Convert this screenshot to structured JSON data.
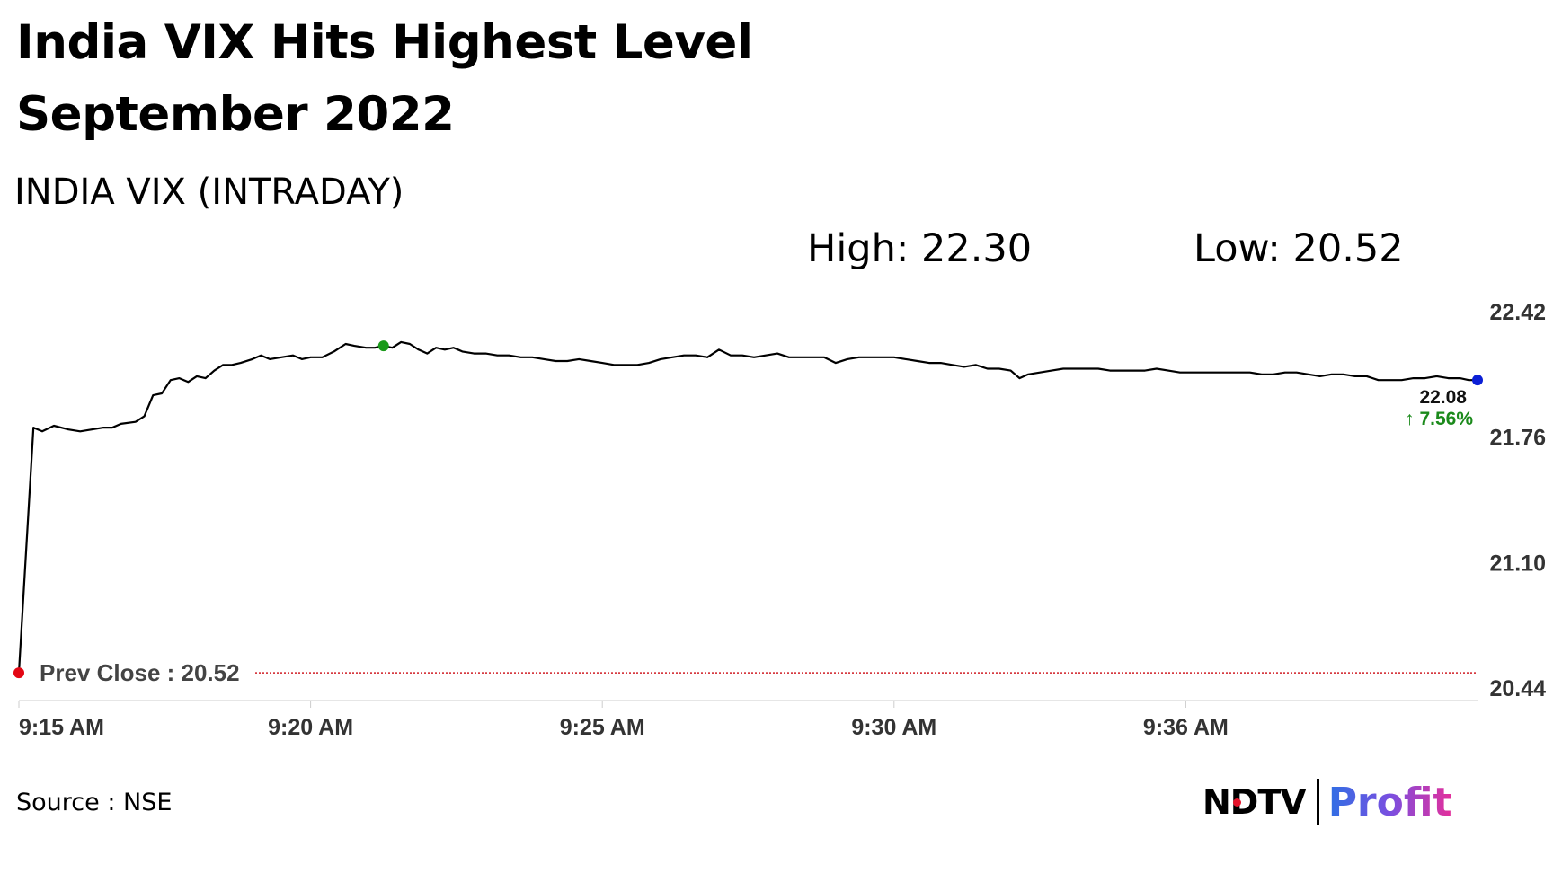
{
  "headline": "India VIX Hits Highest Level September 2022",
  "subtitle": "INDIA VIX (INTRADAY)",
  "stats": {
    "high": "High: 22.30",
    "low": "Low: 20.52"
  },
  "source": "Source : NSE",
  "logo": {
    "ndtv": "NDTV",
    "profit": "Profit",
    "ndtv_dot_color": "#e5142b"
  },
  "chart_data": {
    "type": "line",
    "y_ticks": [
      "22.42",
      "21.76",
      "21.10",
      "20.44"
    ],
    "ylim": [
      20.44,
      22.42
    ],
    "x_ticks": [
      {
        "x": 0,
        "label": "9:15 AM"
      },
      {
        "x": 5,
        "label": "9:20 AM"
      },
      {
        "x": 10,
        "label": "9:25 AM"
      },
      {
        "x": 15,
        "label": "9:30 AM"
      },
      {
        "x": 20,
        "label": "9:36 AM"
      }
    ],
    "xlim": [
      0,
      25
    ],
    "grid": false,
    "series": [
      {
        "color": "#000000",
        "points": [
          [
            0.0,
            20.52
          ],
          [
            0.25,
            21.81
          ],
          [
            0.4,
            21.79
          ],
          [
            0.6,
            21.82
          ],
          [
            0.85,
            21.8
          ],
          [
            1.05,
            21.79
          ],
          [
            1.25,
            21.8
          ],
          [
            1.45,
            21.81
          ],
          [
            1.6,
            21.81
          ],
          [
            1.75,
            21.83
          ],
          [
            2.0,
            21.84
          ],
          [
            2.15,
            21.87
          ],
          [
            2.3,
            21.98
          ],
          [
            2.45,
            21.99
          ],
          [
            2.6,
            22.06
          ],
          [
            2.75,
            22.07
          ],
          [
            2.9,
            22.05
          ],
          [
            3.05,
            22.08
          ],
          [
            3.2,
            22.07
          ],
          [
            3.35,
            22.11
          ],
          [
            3.5,
            22.14
          ],
          [
            3.65,
            22.14
          ],
          [
            3.8,
            22.15
          ],
          [
            4.0,
            22.17
          ],
          [
            4.15,
            22.19
          ],
          [
            4.3,
            22.17
          ],
          [
            4.5,
            22.18
          ],
          [
            4.7,
            22.19
          ],
          [
            4.85,
            22.17
          ],
          [
            5.0,
            22.18
          ],
          [
            5.2,
            22.18
          ],
          [
            5.4,
            22.21
          ],
          [
            5.6,
            22.25
          ],
          [
            5.75,
            22.24
          ],
          [
            5.95,
            22.23
          ],
          [
            6.1,
            22.23
          ],
          [
            6.25,
            22.24
          ],
          [
            6.4,
            22.23
          ],
          [
            6.55,
            22.26
          ],
          [
            6.7,
            22.25
          ],
          [
            6.85,
            22.22
          ],
          [
            7.0,
            22.2
          ],
          [
            7.15,
            22.23
          ],
          [
            7.3,
            22.22
          ],
          [
            7.45,
            22.23
          ],
          [
            7.6,
            22.21
          ],
          [
            7.8,
            22.2
          ],
          [
            8.0,
            22.2
          ],
          [
            8.2,
            22.19
          ],
          [
            8.4,
            22.19
          ],
          [
            8.6,
            22.18
          ],
          [
            8.8,
            22.18
          ],
          [
            9.0,
            22.17
          ],
          [
            9.2,
            22.16
          ],
          [
            9.4,
            22.16
          ],
          [
            9.6,
            22.17
          ],
          [
            9.8,
            22.16
          ],
          [
            10.0,
            22.15
          ],
          [
            10.2,
            22.14
          ],
          [
            10.4,
            22.14
          ],
          [
            10.6,
            22.14
          ],
          [
            10.8,
            22.15
          ],
          [
            11.0,
            22.17
          ],
          [
            11.2,
            22.18
          ],
          [
            11.4,
            22.19
          ],
          [
            11.6,
            22.19
          ],
          [
            11.8,
            22.18
          ],
          [
            12.0,
            22.22
          ],
          [
            12.2,
            22.19
          ],
          [
            12.4,
            22.19
          ],
          [
            12.6,
            22.18
          ],
          [
            12.8,
            22.19
          ],
          [
            13.0,
            22.2
          ],
          [
            13.2,
            22.18
          ],
          [
            13.4,
            22.18
          ],
          [
            13.6,
            22.18
          ],
          [
            13.8,
            22.18
          ],
          [
            14.0,
            22.15
          ],
          [
            14.2,
            22.17
          ],
          [
            14.4,
            22.18
          ],
          [
            14.6,
            22.18
          ],
          [
            14.8,
            22.18
          ],
          [
            15.0,
            22.18
          ],
          [
            15.2,
            22.17
          ],
          [
            15.4,
            22.16
          ],
          [
            15.6,
            22.15
          ],
          [
            15.8,
            22.15
          ],
          [
            16.0,
            22.14
          ],
          [
            16.2,
            22.13
          ],
          [
            16.4,
            22.14
          ],
          [
            16.6,
            22.12
          ],
          [
            16.8,
            22.12
          ],
          [
            17.0,
            22.11
          ],
          [
            17.15,
            22.07
          ],
          [
            17.3,
            22.09
          ],
          [
            17.5,
            22.1
          ],
          [
            17.7,
            22.11
          ],
          [
            17.9,
            22.12
          ],
          [
            18.1,
            22.12
          ],
          [
            18.3,
            22.12
          ],
          [
            18.5,
            22.12
          ],
          [
            18.7,
            22.11
          ],
          [
            18.9,
            22.11
          ],
          [
            19.1,
            22.11
          ],
          [
            19.3,
            22.11
          ],
          [
            19.5,
            22.12
          ],
          [
            19.7,
            22.11
          ],
          [
            19.9,
            22.1
          ],
          [
            20.1,
            22.1
          ],
          [
            20.3,
            22.1
          ],
          [
            20.5,
            22.1
          ],
          [
            20.7,
            22.1
          ],
          [
            20.9,
            22.1
          ],
          [
            21.1,
            22.1
          ],
          [
            21.3,
            22.09
          ],
          [
            21.5,
            22.09
          ],
          [
            21.7,
            22.1
          ],
          [
            21.9,
            22.1
          ],
          [
            22.1,
            22.09
          ],
          [
            22.3,
            22.08
          ],
          [
            22.5,
            22.09
          ],
          [
            22.7,
            22.09
          ],
          [
            22.9,
            22.08
          ],
          [
            23.1,
            22.08
          ],
          [
            23.3,
            22.06
          ],
          [
            23.5,
            22.06
          ],
          [
            23.7,
            22.06
          ],
          [
            23.9,
            22.07
          ],
          [
            24.1,
            22.07
          ],
          [
            24.3,
            22.08
          ],
          [
            24.5,
            22.07
          ],
          [
            24.7,
            22.07
          ],
          [
            24.85,
            22.06
          ],
          [
            25.0,
            22.06
          ]
        ]
      }
    ],
    "markers": [
      {
        "x": 0,
        "y": 20.52,
        "color": "#e30613"
      },
      {
        "x": 6.25,
        "y": 22.24,
        "color": "#1a9a1a"
      },
      {
        "x": 25.0,
        "y": 22.06,
        "color": "#0b1fd6"
      }
    ],
    "prev_close": {
      "value": 20.52,
      "label": "Prev Close : 20.52",
      "color": "#d11f26"
    },
    "last": {
      "value": "22.08",
      "change": "↑ 7.56%",
      "change_color": "#1b8a1b"
    }
  }
}
